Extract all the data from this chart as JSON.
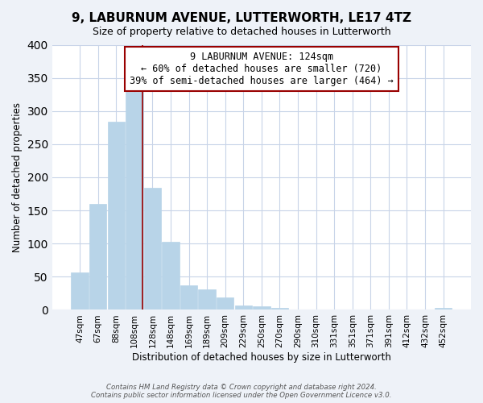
{
  "title": "9, LABURNUM AVENUE, LUTTERWORTH, LE17 4TZ",
  "subtitle": "Size of property relative to detached houses in Lutterworth",
  "xlabel": "Distribution of detached houses by size in Lutterworth",
  "ylabel": "Number of detached properties",
  "footer_line1": "Contains HM Land Registry data © Crown copyright and database right 2024.",
  "footer_line2": "Contains public sector information licensed under the Open Government Licence v3.0.",
  "bar_labels": [
    "47sqm",
    "67sqm",
    "88sqm",
    "108sqm",
    "128sqm",
    "148sqm",
    "169sqm",
    "189sqm",
    "209sqm",
    "229sqm",
    "250sqm",
    "270sqm",
    "290sqm",
    "310sqm",
    "331sqm",
    "351sqm",
    "371sqm",
    "391sqm",
    "412sqm",
    "432sqm",
    "452sqm"
  ],
  "bar_values": [
    57,
    160,
    284,
    329,
    184,
    103,
    37,
    31,
    19,
    7,
    5,
    3,
    0,
    0,
    0,
    0,
    0,
    0,
    0,
    0,
    3
  ],
  "bar_color": "#b8d4e8",
  "bar_edge_color": "#b8d4e8",
  "highlight_color": "#990000",
  "annotation_title": "9 LABURNUM AVENUE: 124sqm",
  "annotation_line1": "← 60% of detached houses are smaller (720)",
  "annotation_line2": "39% of semi-detached houses are larger (464) →",
  "annotation_box_color": "white",
  "annotation_box_edge": "#990000",
  "vline_x": 3.47,
  "ylim": [
    0,
    400
  ],
  "yticks": [
    0,
    50,
    100,
    150,
    200,
    250,
    300,
    350,
    400
  ],
  "bg_color": "#eef2f8",
  "plot_bg_color": "white",
  "grid_color": "#c8d4e8",
  "title_fontsize": 11,
  "subtitle_fontsize": 9,
  "ylabel_fontsize": 8.5,
  "xlabel_fontsize": 8.5,
  "tick_fontsize": 7.5,
  "annotation_fontsize": 8.5
}
